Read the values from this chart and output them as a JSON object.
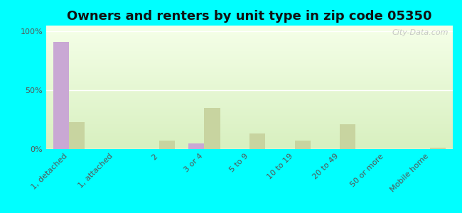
{
  "title": "Owners and renters by unit type in zip code 05350",
  "categories": [
    "1, detached",
    "1, attached",
    "2",
    "3 or 4",
    "5 to 9",
    "10 to 19",
    "20 to 49",
    "50 or more",
    "Mobile home"
  ],
  "owner_values": [
    91,
    0,
    0,
    5,
    0,
    0,
    0,
    0,
    0
  ],
  "renter_values": [
    23,
    0,
    7,
    35,
    13,
    7,
    21,
    0,
    1
  ],
  "owner_color": "#c9a8d4",
  "renter_color": "#c8d4a0",
  "background": "#00ffff",
  "yticks": [
    0,
    50,
    100
  ],
  "ylim": [
    0,
    105
  ],
  "bar_width": 0.35,
  "title_fontsize": 13,
  "tick_fontsize": 8,
  "legend_fontsize": 9
}
